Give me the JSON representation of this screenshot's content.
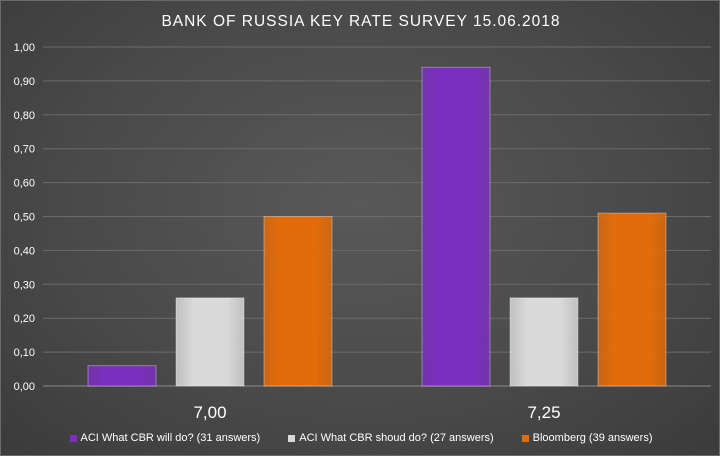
{
  "chart_data": {
    "type": "bar",
    "title": "BANK OF RUSSIA KEY RATE SURVEY 15.06.2018",
    "categories": [
      "7,00",
      "7,25"
    ],
    "series": [
      {
        "name": "ACI What CBR will do? (31 answers)",
        "values": [
          0.06,
          0.94
        ],
        "color": "#7b2fbe"
      },
      {
        "name": "ACI What CBR shoud do? (27 answers)",
        "values": [
          0.26,
          0.26
        ],
        "color": "#d9d9d9"
      },
      {
        "name": "Bloomberg (39 answers)",
        "values": [
          0.5,
          0.51
        ],
        "color": "#e36c0a"
      }
    ],
    "ylim": [
      0,
      1
    ],
    "yticks": [
      "0,00",
      "0,10",
      "0,20",
      "0,30",
      "0,40",
      "0,50",
      "0,60",
      "0,70",
      "0,80",
      "0,90",
      "1,00"
    ],
    "grid": true,
    "legend_position": "bottom"
  }
}
